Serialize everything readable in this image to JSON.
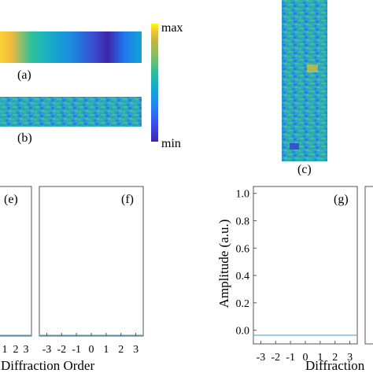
{
  "colorbar": {
    "max_label": "max",
    "min_label": "min",
    "colormap": "parula",
    "colors": [
      "#3e26a8",
      "#3b4cf0",
      "#2584f2",
      "#13a8cf",
      "#2fbb9c",
      "#7fbf66",
      "#c3b53f",
      "#f5c637",
      "#f9fb0e"
    ]
  },
  "panels": {
    "a": {
      "label": "(a)"
    },
    "b": {
      "label": "(b)"
    },
    "c": {
      "label": "(c)"
    },
    "e": {
      "label": "(e)"
    },
    "f": {
      "label": "(f)"
    },
    "g": {
      "label": "(g)"
    }
  },
  "chart_data": [
    {
      "type": "line",
      "panel": "(e)",
      "xlabel": "Diffraction Order",
      "x_ticks": [
        "1",
        "2",
        "3"
      ],
      "series": [
        {
          "x": [
            -3.5,
            3.5
          ],
          "y": [
            0.0,
            0.0
          ]
        }
      ],
      "line_color": "#6baed6"
    },
    {
      "type": "line",
      "panel": "(f)",
      "xlim": [
        -3.5,
        3.5
      ],
      "x_ticks": [
        "-3",
        "-2",
        "-1",
        "0",
        "1",
        "2",
        "3"
      ],
      "series": [
        {
          "x": [
            -3.5,
            3.5
          ],
          "y": [
            0.0,
            0.0
          ]
        }
      ],
      "line_color": "#6baed6"
    },
    {
      "type": "line",
      "panel": "(g)",
      "xlim": [
        -3.5,
        3.5
      ],
      "ylim": [
        -0.1,
        1.05
      ],
      "ylabel": "Amplitude (a.u.)",
      "xlabel": "Diffraction",
      "x_ticks": [
        "-3",
        "-2",
        "-1",
        "0",
        "1",
        "2",
        "3"
      ],
      "y_ticks": [
        "0.0",
        "0.2",
        "0.4",
        "0.6",
        "0.8",
        "1.0"
      ],
      "series": [
        {
          "x": [
            -3.5,
            3.5
          ],
          "y": [
            0.0,
            0.0
          ]
        }
      ],
      "line_color": "#6baed6"
    }
  ]
}
